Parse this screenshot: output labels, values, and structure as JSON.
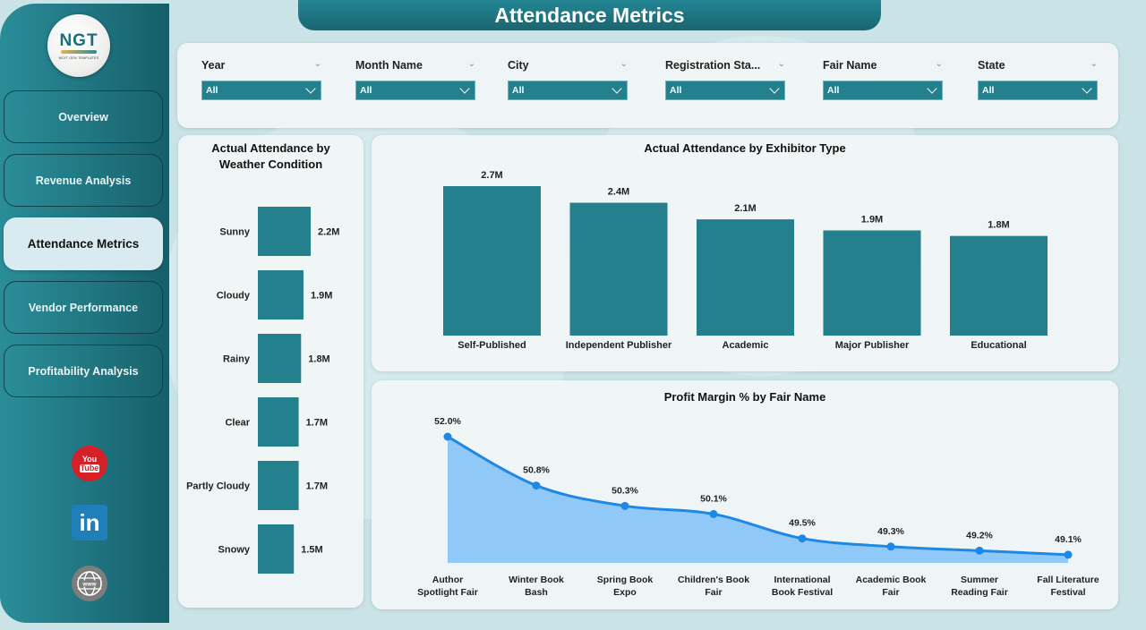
{
  "header": {
    "title": "Attendance Metrics"
  },
  "logo": {
    "text": "NGT",
    "subtitle": "NEXT GEN TEMPLATES"
  },
  "sidebar": {
    "items": [
      {
        "label": "Overview",
        "active": false
      },
      {
        "label": "Revenue Analysis",
        "active": false
      },
      {
        "label": "Attendance Metrics",
        "active": true
      },
      {
        "label": "Vendor Performance",
        "active": false
      },
      {
        "label": "Profitability Analysis",
        "active": false
      }
    ],
    "social": [
      {
        "icon": "youtube-icon",
        "top": "You",
        "bottom": "Tube"
      },
      {
        "icon": "linkedin-icon",
        "text": "in"
      },
      {
        "icon": "website-icon",
        "text": "www"
      }
    ]
  },
  "filters": [
    {
      "label": "Year",
      "value": "All"
    },
    {
      "label": "Month Name",
      "value": "All"
    },
    {
      "label": "City",
      "value": "All"
    },
    {
      "label": "Registration Sta...",
      "value": "All"
    },
    {
      "label": "Fair Name",
      "value": "All"
    },
    {
      "label": "State",
      "value": "All"
    }
  ],
  "colors": {
    "bar": "#24808c",
    "line": "#1e88e5",
    "area": "#90c8f8",
    "sidebar": "#1f7480"
  },
  "chart_data": [
    {
      "type": "bar",
      "orientation": "horizontal",
      "title": "Actual Attendance by Weather Condition",
      "categories": [
        "Sunny",
        "Cloudy",
        "Rainy",
        "Clear",
        "Partly Cloudy",
        "Snowy"
      ],
      "values": [
        2.2,
        1.9,
        1.8,
        1.7,
        1.7,
        1.5
      ],
      "data_labels": [
        "2.2M",
        "1.9M",
        "1.8M",
        "1.7M",
        "1.7M",
        "1.5M"
      ],
      "unit": "M",
      "xlabel": "",
      "ylabel": ""
    },
    {
      "type": "bar",
      "title": "Actual Attendance by Exhibitor Type",
      "categories": [
        "Self-Published",
        "Independent Publisher",
        "Academic",
        "Major Publisher",
        "Educational"
      ],
      "values": [
        2.7,
        2.4,
        2.1,
        1.9,
        1.8
      ],
      "data_labels": [
        "2.7M",
        "2.4M",
        "2.1M",
        "1.9M",
        "1.8M"
      ],
      "unit": "M",
      "xlabel": "",
      "ylabel": ""
    },
    {
      "type": "area",
      "title": "Profit Margin % by Fair Name",
      "categories": [
        [
          "Author",
          "Spotlight Fair"
        ],
        [
          "Winter Book",
          "Bash"
        ],
        [
          "Spring Book",
          "Expo"
        ],
        [
          "Children's Book",
          "Fair"
        ],
        [
          "International",
          "Book Festival"
        ],
        [
          "Academic Book",
          "Fair"
        ],
        [
          "Summer",
          "Reading Fair"
        ],
        [
          "Fall Literature",
          "Festival"
        ]
      ],
      "values": [
        52.0,
        50.8,
        50.3,
        50.1,
        49.5,
        49.3,
        49.2,
        49.1
      ],
      "data_labels": [
        "52.0%",
        "50.8%",
        "50.3%",
        "50.1%",
        "49.5%",
        "49.3%",
        "49.2%",
        "49.1%"
      ],
      "ylim": [
        48.9,
        52.0
      ],
      "xlabel": "",
      "ylabel": ""
    }
  ]
}
